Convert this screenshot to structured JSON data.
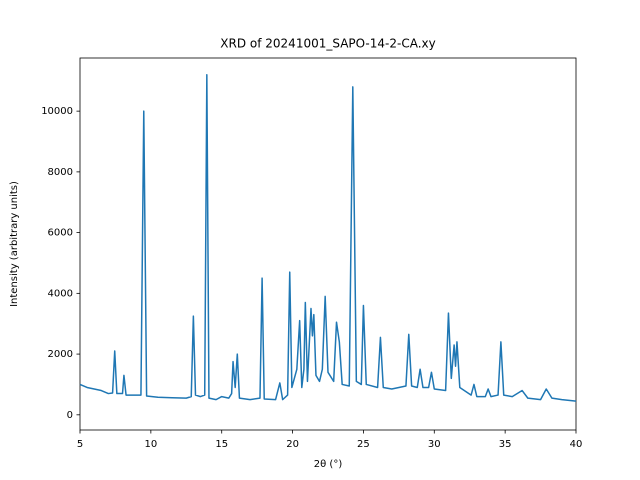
{
  "chart_data": {
    "type": "line",
    "title": "XRD of 20241001_SAPO-14-2-CA.xy",
    "xlabel": "2θ (°)",
    "ylabel": "Intensity (arbitrary units)",
    "xlim": [
      5,
      40
    ],
    "ylim": [
      -500,
      11750
    ],
    "xticks": [
      5,
      10,
      15,
      20,
      25,
      30,
      35,
      40
    ],
    "yticks": [
      0,
      2000,
      4000,
      6000,
      8000,
      10000
    ],
    "series": [
      {
        "color": "#1f77b4",
        "x": [
          5,
          5.5,
          6,
          6.5,
          7,
          7.3,
          7.45,
          7.6,
          8.0,
          8.1,
          8.25,
          9.3,
          9.5,
          9.7,
          10.5,
          11.5,
          12.5,
          12.85,
          13.0,
          13.15,
          13.5,
          13.8,
          13.95,
          14.1,
          14.6,
          15.0,
          15.5,
          15.7,
          15.8,
          15.95,
          16.1,
          16.25,
          17.0,
          17.7,
          17.85,
          18.0,
          18.8,
          19.1,
          19.3,
          19.65,
          19.8,
          19.95,
          20.3,
          20.5,
          20.65,
          20.8,
          20.9,
          21.05,
          21.3,
          21.4,
          21.5,
          21.65,
          21.9,
          22.1,
          22.3,
          22.5,
          22.9,
          23.1,
          23.3,
          23.5,
          24.0,
          24.25,
          24.5,
          24.85,
          25.0,
          25.2,
          26.0,
          26.2,
          26.4,
          27.0,
          28.0,
          28.2,
          28.4,
          28.8,
          29.0,
          29.2,
          29.6,
          29.8,
          30.0,
          30.8,
          31.0,
          31.2,
          31.4,
          31.5,
          31.6,
          31.8,
          32.6,
          32.8,
          33.0,
          33.6,
          33.8,
          34.0,
          34.5,
          34.7,
          34.9,
          35.5,
          36.2,
          36.6,
          37.5,
          37.9,
          38.3,
          39.0,
          40.0
        ],
        "values": [
          1000,
          900,
          850,
          800,
          700,
          720,
          2100,
          700,
          700,
          1300,
          650,
          650,
          10000,
          620,
          580,
          560,
          550,
          600,
          3250,
          650,
          600,
          650,
          11200,
          550,
          500,
          600,
          550,
          700,
          1750,
          900,
          2000,
          550,
          500,
          550,
          4500,
          520,
          500,
          1050,
          500,
          650,
          4700,
          900,
          1500,
          3100,
          900,
          1500,
          3700,
          1100,
          3500,
          2600,
          3300,
          1300,
          1100,
          1500,
          3900,
          1400,
          1100,
          3050,
          2400,
          1000,
          950,
          10800,
          1100,
          1000,
          3600,
          1000,
          900,
          2550,
          900,
          850,
          950,
          2650,
          950,
          900,
          1500,
          900,
          900,
          1400,
          850,
          800,
          3350,
          1200,
          2300,
          1600,
          2400,
          900,
          650,
          1000,
          600,
          600,
          850,
          600,
          650,
          2400,
          650,
          600,
          800,
          550,
          500,
          850,
          550,
          500,
          450
        ]
      }
    ]
  }
}
